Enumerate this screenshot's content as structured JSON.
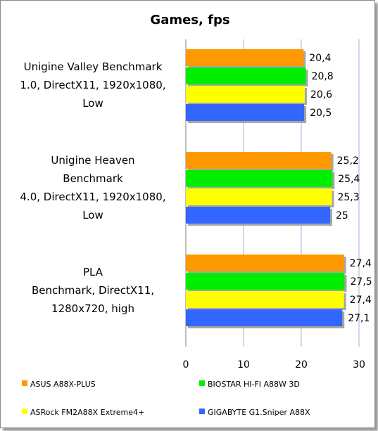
{
  "chart_data": {
    "type": "bar",
    "orientation": "horizontal",
    "title": "Games,  fps",
    "categories": [
      [
        "Unigine Valley Benchmark",
        "1.0, DirectX11, 1920x1080,",
        "Low"
      ],
      [
        "Unigine Heaven",
        "Benchmark",
        "4.0, DirectX11, 1920x1080,",
        "Low"
      ],
      [
        "PLA",
        "Benchmark, DirectX11,",
        "1280x720, high"
      ]
    ],
    "series": [
      {
        "name": "ASUS A88X-PLUS",
        "color": "#ff9900",
        "values": [
          20.4,
          25.2,
          27.4
        ],
        "labels": [
          "20,4",
          "25,2",
          "27,4"
        ]
      },
      {
        "name": "BIOSTAR HI-FI A88W 3D",
        "color": "#00ee00",
        "values": [
          20.8,
          25.4,
          27.5
        ],
        "labels": [
          "20,8",
          "25,4",
          "27,5"
        ]
      },
      {
        "name": "ASRock FM2A88X Extreme4+",
        "color": "#ffff00",
        "values": [
          20.6,
          25.3,
          27.4
        ],
        "labels": [
          "20,6",
          "25,3",
          "27,4"
        ]
      },
      {
        "name": "GIGABYTE G1.Sniper A88X",
        "color": "#3366ff",
        "values": [
          20.5,
          25.0,
          27.1
        ],
        "labels": [
          "20,5",
          "25",
          "27,1"
        ]
      }
    ],
    "xlim": [
      0,
      30
    ],
    "xticks": [
      "0",
      "10",
      "20",
      "30"
    ],
    "grid": true,
    "legend_position": "bottom"
  }
}
